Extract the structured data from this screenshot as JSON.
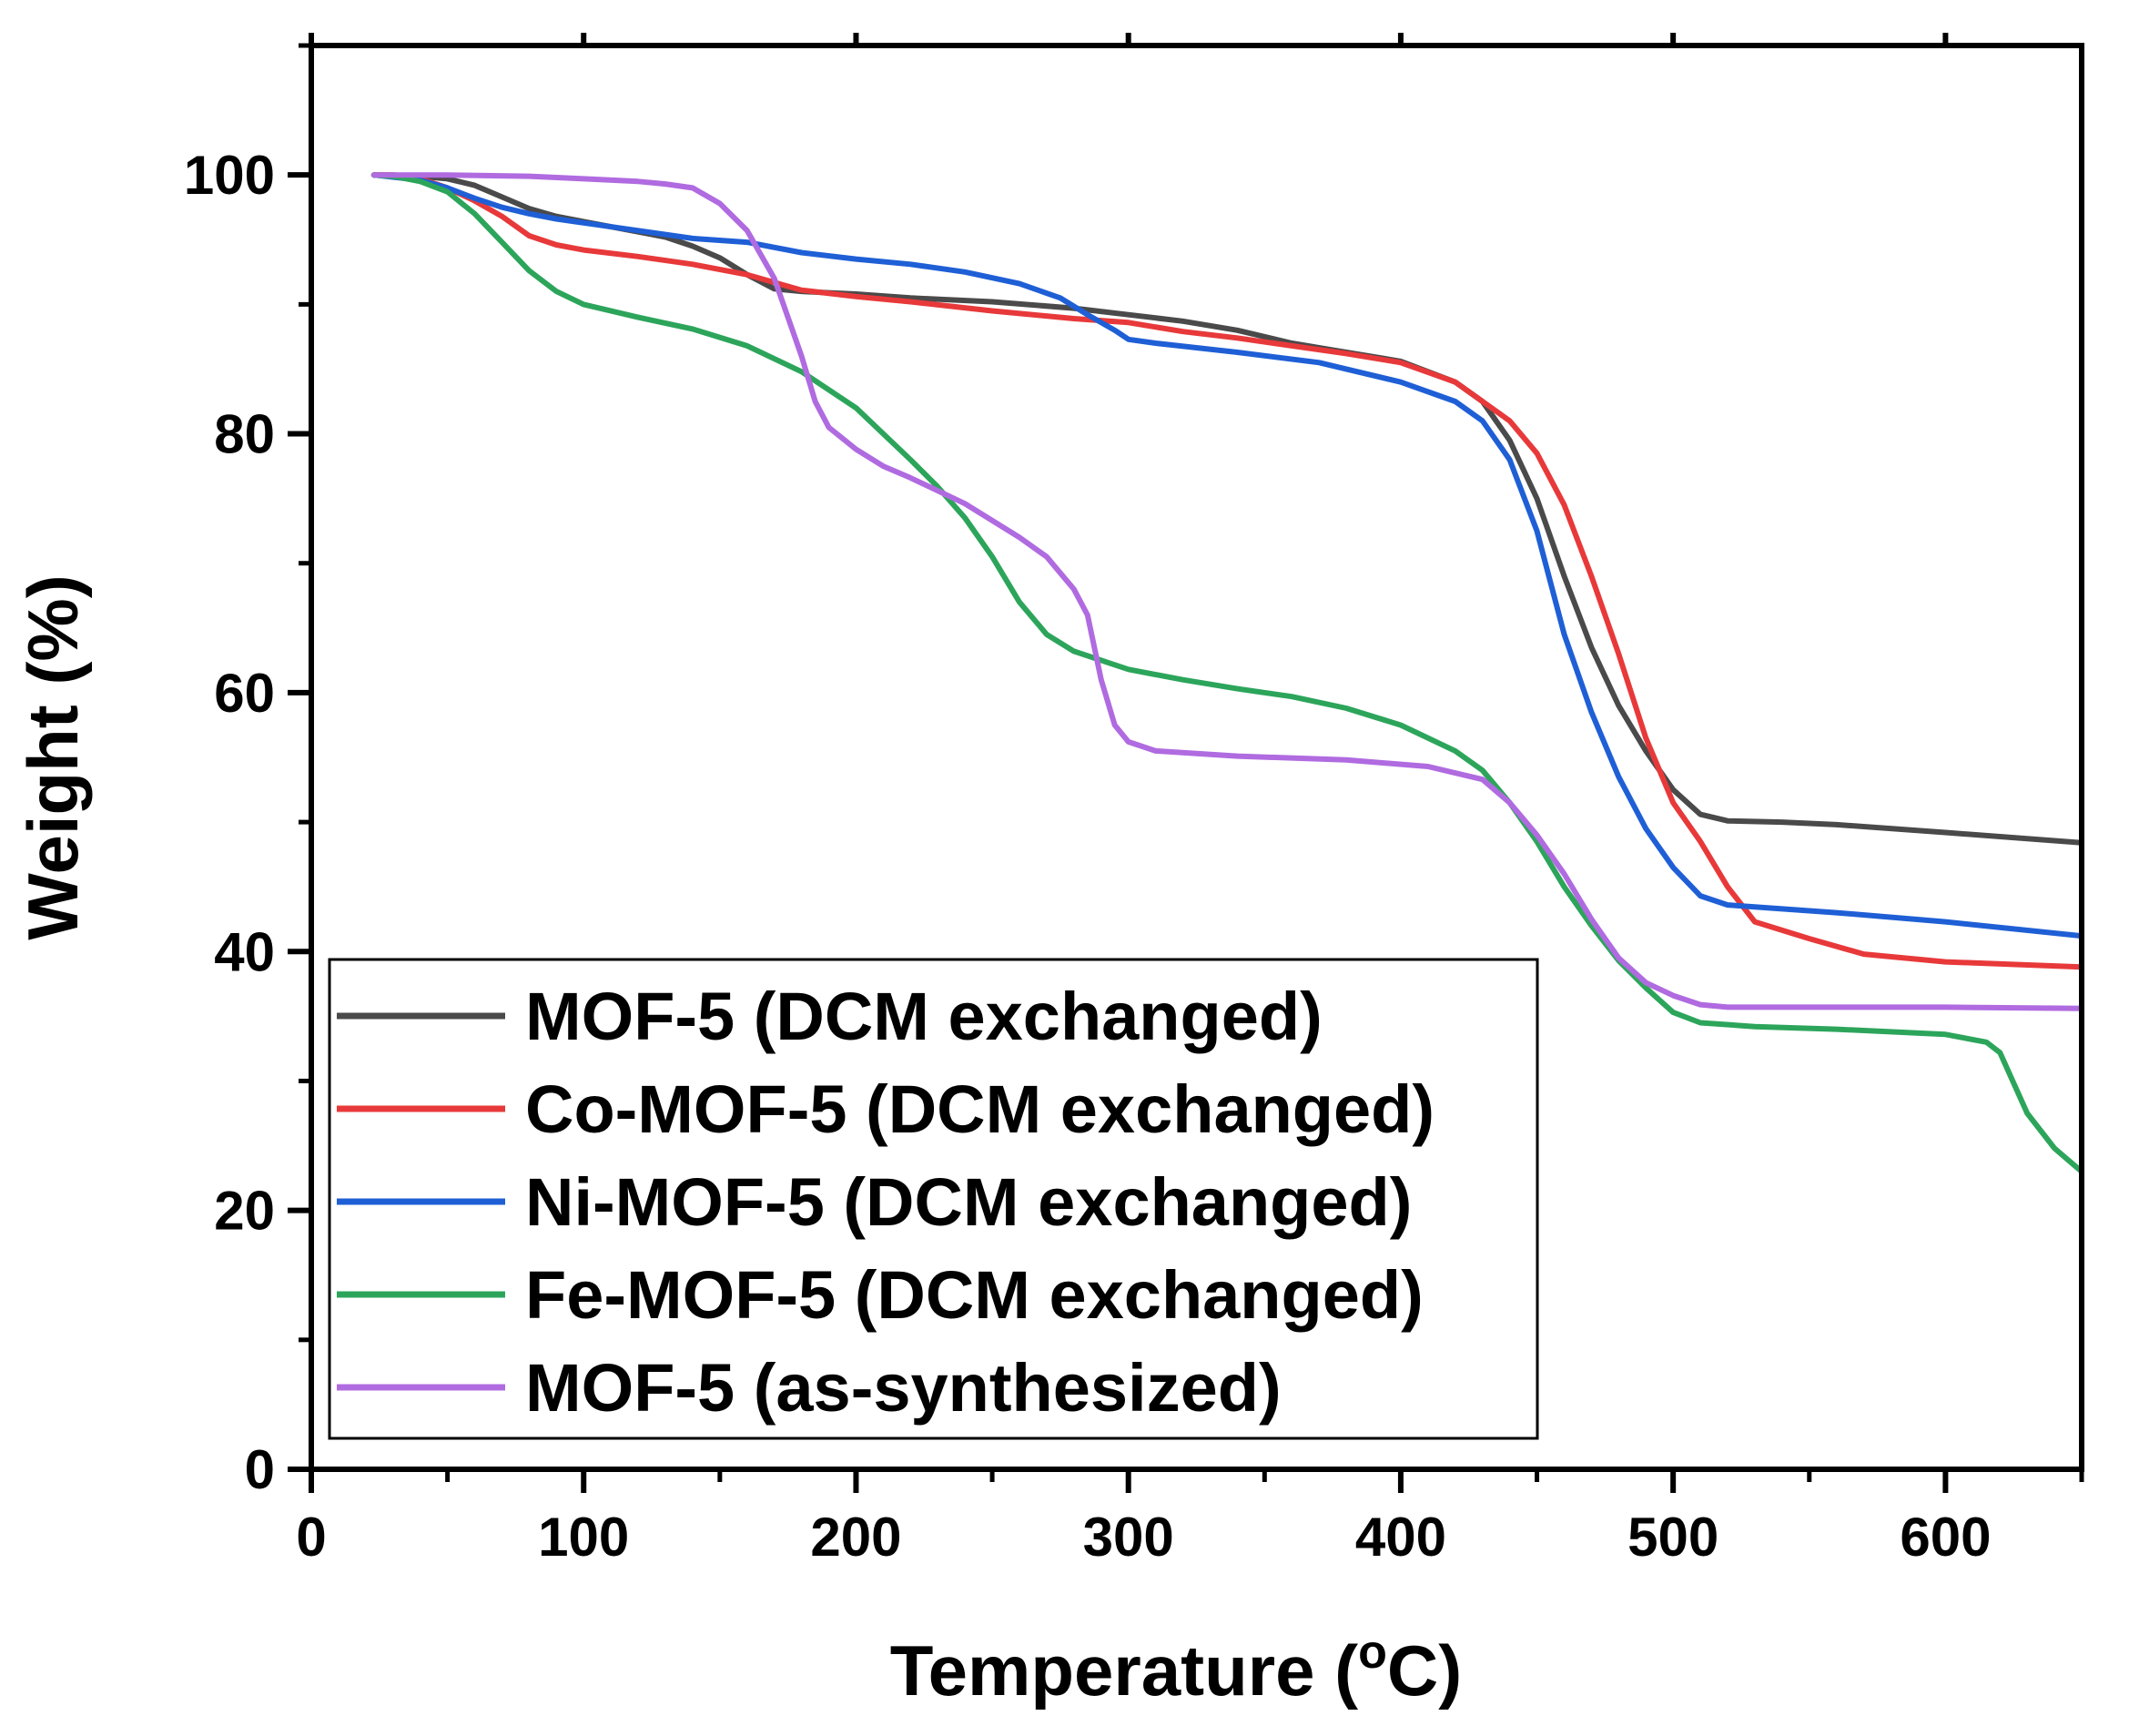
{
  "chart_data": {
    "type": "line",
    "title": "",
    "xlabel": "Temperature (",
    "xlabel_sup": "o",
    "xlabel_end": "C)",
    "ylabel": "Weight (%)",
    "xlim": [
      0,
      650
    ],
    "ylim": [
      0,
      110
    ],
    "xticks": [
      0,
      100,
      200,
      300,
      400,
      500,
      600
    ],
    "yticks": [
      0,
      20,
      40,
      60,
      80,
      100
    ],
    "xminor": [
      50,
      150,
      250,
      350,
      450,
      550,
      650
    ],
    "yminor": [
      10,
      30,
      50,
      70,
      90,
      110
    ],
    "grid": false,
    "legend_position": "bottom-left",
    "series": [
      {
        "name": "MOF-5 (DCM exchanged)",
        "color": "#4a4a4a",
        "points": [
          [
            23,
            100
          ],
          [
            30,
            100
          ],
          [
            40,
            99.9
          ],
          [
            50,
            99.7
          ],
          [
            60,
            99.2
          ],
          [
            70,
            98.3
          ],
          [
            80,
            97.4
          ],
          [
            90,
            96.8
          ],
          [
            100,
            96.4
          ],
          [
            110,
            96
          ],
          [
            120,
            95.6
          ],
          [
            130,
            95.2
          ],
          [
            140,
            94.5
          ],
          [
            150,
            93.6
          ],
          [
            160,
            92.3
          ],
          [
            170,
            91.2
          ],
          [
            180,
            91
          ],
          [
            190,
            90.9
          ],
          [
            200,
            90.8
          ],
          [
            220,
            90.5
          ],
          [
            250,
            90.2
          ],
          [
            280,
            89.7
          ],
          [
            300,
            89.2
          ],
          [
            320,
            88.7
          ],
          [
            340,
            88
          ],
          [
            360,
            87
          ],
          [
            380,
            86.3
          ],
          [
            400,
            85.6
          ],
          [
            420,
            84
          ],
          [
            430,
            82.5
          ],
          [
            440,
            79.5
          ],
          [
            450,
            75
          ],
          [
            460,
            69
          ],
          [
            470,
            63.5
          ],
          [
            480,
            59
          ],
          [
            490,
            55.5
          ],
          [
            500,
            52.5
          ],
          [
            510,
            50.6
          ],
          [
            520,
            50.1
          ],
          [
            540,
            50
          ],
          [
            560,
            49.8
          ],
          [
            600,
            49.2
          ],
          [
            650,
            48.4
          ]
        ]
      },
      {
        "name": "Co-MOF-5 (DCM exchanged)",
        "color": "#e8393a",
        "points": [
          [
            23,
            100
          ],
          [
            30,
            100
          ],
          [
            40,
            99.7
          ],
          [
            50,
            99
          ],
          [
            60,
            98
          ],
          [
            70,
            96.8
          ],
          [
            80,
            95.3
          ],
          [
            90,
            94.6
          ],
          [
            100,
            94.2
          ],
          [
            120,
            93.7
          ],
          [
            140,
            93.1
          ],
          [
            160,
            92.3
          ],
          [
            170,
            91.7
          ],
          [
            180,
            91.1
          ],
          [
            200,
            90.6
          ],
          [
            220,
            90.2
          ],
          [
            250,
            89.5
          ],
          [
            280,
            88.9
          ],
          [
            300,
            88.6
          ],
          [
            320,
            87.9
          ],
          [
            340,
            87.4
          ],
          [
            360,
            86.8
          ],
          [
            380,
            86.2
          ],
          [
            400,
            85.5
          ],
          [
            420,
            84
          ],
          [
            440,
            81
          ],
          [
            450,
            78.5
          ],
          [
            460,
            74.5
          ],
          [
            470,
            69
          ],
          [
            480,
            63
          ],
          [
            490,
            56.5
          ],
          [
            500,
            51.5
          ],
          [
            510,
            48.5
          ],
          [
            520,
            45
          ],
          [
            530,
            42.3
          ],
          [
            550,
            41
          ],
          [
            570,
            39.8
          ],
          [
            600,
            39.2
          ],
          [
            650,
            38.8
          ]
        ]
      },
      {
        "name": "Ni-MOF-5 (DCM exchanged)",
        "color": "#1f5fd6",
        "points": [
          [
            23,
            100
          ],
          [
            40,
            99.6
          ],
          [
            50,
            99
          ],
          [
            60,
            98.2
          ],
          [
            70,
            97.5
          ],
          [
            80,
            97
          ],
          [
            90,
            96.6
          ],
          [
            100,
            96.3
          ],
          [
            120,
            95.7
          ],
          [
            140,
            95.1
          ],
          [
            160,
            94.8
          ],
          [
            180,
            94
          ],
          [
            200,
            93.5
          ],
          [
            220,
            93.1
          ],
          [
            240,
            92.5
          ],
          [
            260,
            91.6
          ],
          [
            275,
            90.5
          ],
          [
            285,
            89.2
          ],
          [
            295,
            88
          ],
          [
            300,
            87.3
          ],
          [
            310,
            87
          ],
          [
            340,
            86.3
          ],
          [
            370,
            85.5
          ],
          [
            400,
            84
          ],
          [
            420,
            82.5
          ],
          [
            430,
            81
          ],
          [
            440,
            78
          ],
          [
            450,
            72.5
          ],
          [
            460,
            64.5
          ],
          [
            470,
            58.5
          ],
          [
            480,
            53.5
          ],
          [
            490,
            49.5
          ],
          [
            500,
            46.5
          ],
          [
            510,
            44.3
          ],
          [
            520,
            43.6
          ],
          [
            540,
            43.3
          ],
          [
            560,
            43
          ],
          [
            600,
            42.3
          ],
          [
            650,
            41.2
          ]
        ]
      },
      {
        "name": "Fe-MOF-5 (DCM exchanged)",
        "color": "#2ca55b",
        "points": [
          [
            23,
            100
          ],
          [
            30,
            99.9
          ],
          [
            40,
            99.5
          ],
          [
            50,
            98.7
          ],
          [
            60,
            97
          ],
          [
            70,
            94.8
          ],
          [
            80,
            92.6
          ],
          [
            90,
            91
          ],
          [
            100,
            90
          ],
          [
            120,
            89
          ],
          [
            140,
            88.1
          ],
          [
            160,
            86.8
          ],
          [
            180,
            84.8
          ],
          [
            200,
            82
          ],
          [
            220,
            78
          ],
          [
            230,
            75.9
          ],
          [
            240,
            73.5
          ],
          [
            250,
            70.5
          ],
          [
            260,
            67
          ],
          [
            270,
            64.5
          ],
          [
            280,
            63.2
          ],
          [
            300,
            61.8
          ],
          [
            320,
            61
          ],
          [
            340,
            60.3
          ],
          [
            360,
            59.7
          ],
          [
            380,
            58.8
          ],
          [
            400,
            57.5
          ],
          [
            420,
            55.5
          ],
          [
            430,
            54
          ],
          [
            440,
            51.5
          ],
          [
            450,
            48.5
          ],
          [
            460,
            45
          ],
          [
            470,
            42
          ],
          [
            480,
            39.3
          ],
          [
            490,
            37.2
          ],
          [
            500,
            35.3
          ],
          [
            510,
            34.5
          ],
          [
            530,
            34.2
          ],
          [
            560,
            34
          ],
          [
            600,
            33.6
          ],
          [
            615,
            33
          ],
          [
            620,
            32.2
          ],
          [
            630,
            27.5
          ],
          [
            640,
            24.8
          ],
          [
            650,
            23
          ]
        ]
      },
      {
        "name": "MOF-5 (as-synthesized)",
        "color": "#b06be0",
        "points": [
          [
            23,
            100
          ],
          [
            50,
            100
          ],
          [
            80,
            99.9
          ],
          [
            100,
            99.7
          ],
          [
            120,
            99.5
          ],
          [
            130,
            99.3
          ],
          [
            140,
            99
          ],
          [
            150,
            97.8
          ],
          [
            160,
            95.7
          ],
          [
            170,
            92
          ],
          [
            180,
            86
          ],
          [
            185,
            82.5
          ],
          [
            190,
            80.5
          ],
          [
            200,
            78.8
          ],
          [
            210,
            77.5
          ],
          [
            220,
            76.6
          ],
          [
            240,
            74.6
          ],
          [
            260,
            72
          ],
          [
            270,
            70.5
          ],
          [
            280,
            68
          ],
          [
            285,
            66
          ],
          [
            290,
            61
          ],
          [
            295,
            57.5
          ],
          [
            300,
            56.2
          ],
          [
            310,
            55.5
          ],
          [
            340,
            55.1
          ],
          [
            380,
            54.8
          ],
          [
            410,
            54.3
          ],
          [
            430,
            53.3
          ],
          [
            440,
            51.5
          ],
          [
            450,
            49
          ],
          [
            460,
            46
          ],
          [
            470,
            42.5
          ],
          [
            480,
            39.5
          ],
          [
            490,
            37.6
          ],
          [
            500,
            36.6
          ],
          [
            510,
            35.9
          ],
          [
            520,
            35.7
          ],
          [
            550,
            35.7
          ],
          [
            600,
            35.7
          ],
          [
            650,
            35.6
          ]
        ]
      }
    ]
  }
}
